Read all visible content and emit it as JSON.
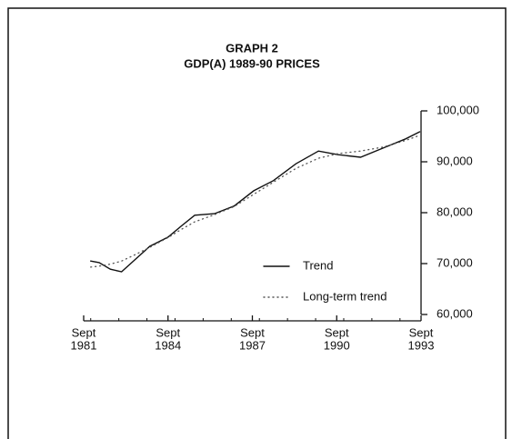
{
  "chart_data": {
    "type": "line",
    "title": "GRAPH 2",
    "subtitle": "GDP(A) 1989-90 PRICES",
    "x": [
      1982.0,
      1982.3,
      1982.7,
      1983.1,
      1983.6,
      1984.1,
      1984.75,
      1985.25,
      1985.7,
      1986.4,
      1987.1,
      1987.8,
      1988.5,
      1989.3,
      1990.1,
      1990.8,
      1991.6,
      1992.4,
      1993.2,
      1993.7
    ],
    "series": [
      {
        "name": "Trend",
        "color": "#111111",
        "style": "solid",
        "values": [
          70500,
          70200,
          68900,
          68400,
          70900,
          73400,
          75200,
          77500,
          79500,
          79800,
          81300,
          84300,
          86300,
          89600,
          92100,
          91400,
          90900,
          92700,
          94500,
          95900
        ]
      },
      {
        "name": "Long-term trend",
        "color": "#555555",
        "style": "dotted",
        "values": [
          69300,
          69500,
          69900,
          70500,
          71800,
          73200,
          75100,
          76800,
          78200,
          79600,
          81200,
          83600,
          86000,
          88700,
          90700,
          91600,
          92100,
          92900,
          94200,
          95200
        ]
      }
    ],
    "xlim": [
      1981.75,
      1993.75
    ],
    "xticks": [
      {
        "value": 1981.75,
        "label": [
          "Sept",
          "1981"
        ]
      },
      {
        "value": 1984.75,
        "label": [
          "Sept",
          "1984"
        ]
      },
      {
        "value": 1987.75,
        "label": [
          "Sept",
          "1987"
        ]
      },
      {
        "value": 1990.75,
        "label": [
          "Sept",
          "1990"
        ]
      },
      {
        "value": 1993.75,
        "label": [
          "Sept",
          "1993"
        ]
      }
    ],
    "ylim": [
      60000,
      100000
    ],
    "yticks": [
      {
        "value": 60000,
        "label": "60,000"
      },
      {
        "value": 70000,
        "label": "70,000"
      },
      {
        "value": 80000,
        "label": "80,000"
      },
      {
        "value": 90000,
        "label": "90,000"
      },
      {
        "value": 100000,
        "label": "100,000"
      }
    ],
    "y_axis_side": "right",
    "grid": false
  }
}
